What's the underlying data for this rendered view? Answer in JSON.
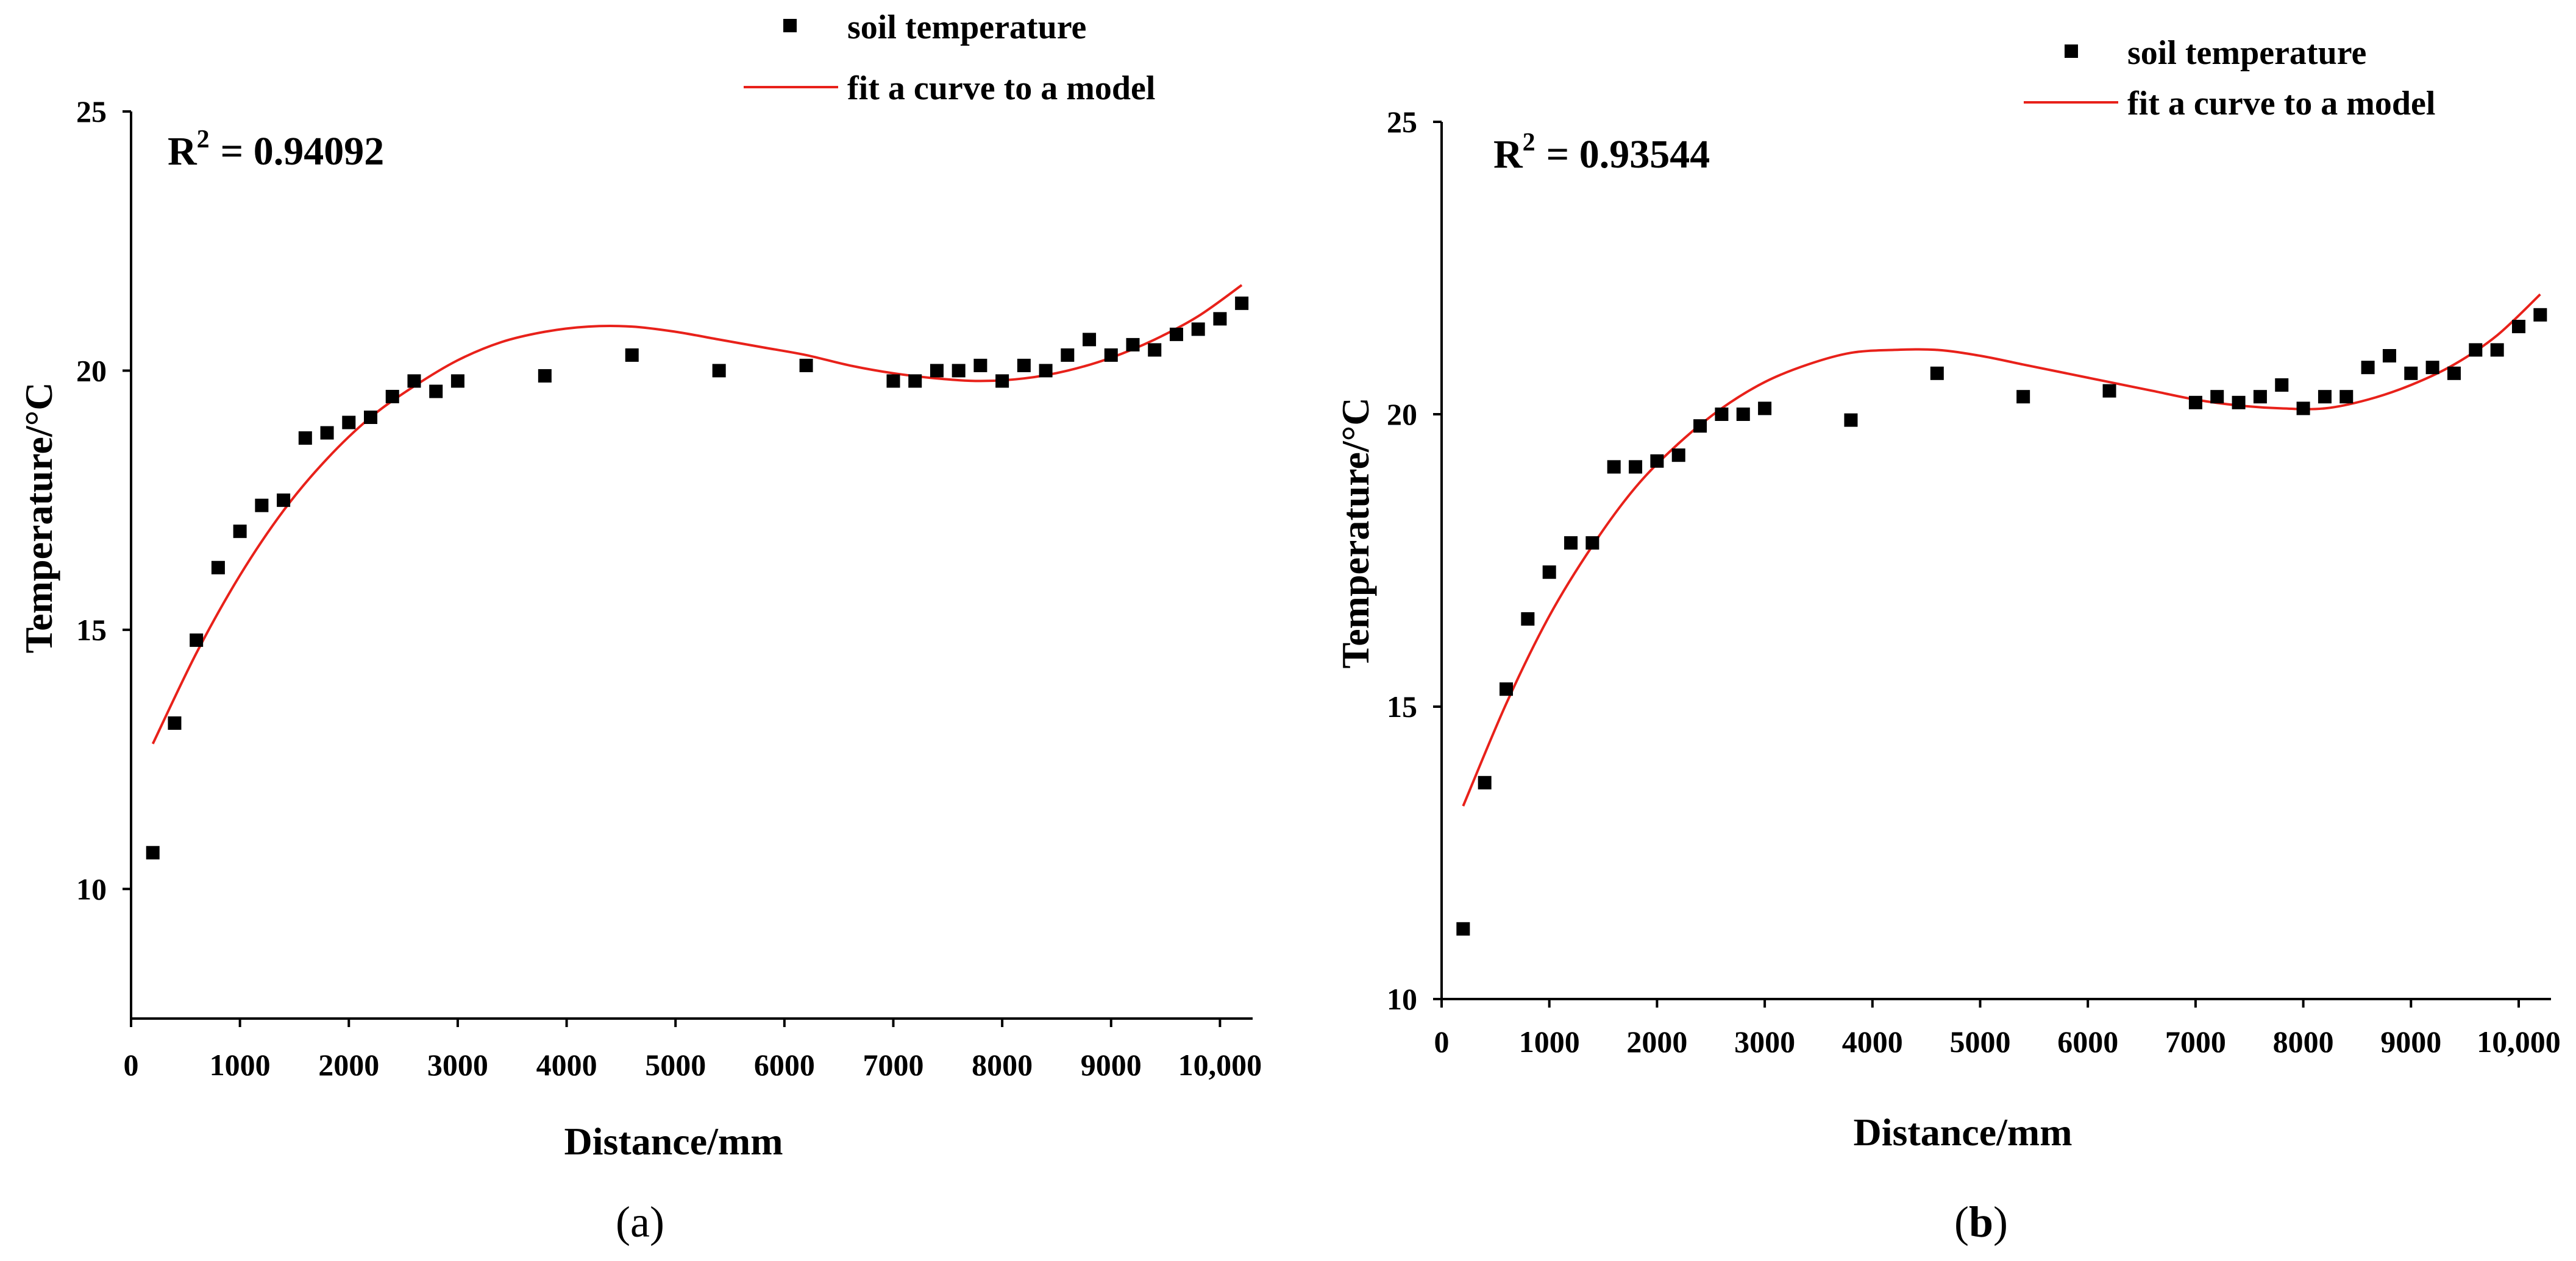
{
  "chart_data": [
    {
      "type": "scatter",
      "panel_label": "a",
      "annotation": {
        "prefix": "R",
        "superscript": "2",
        "value": "= 0.94092"
      },
      "xlabel": "Distance/mm",
      "ylabel": "Temperature/°C",
      "xlim": [
        0,
        10300
      ],
      "ylim": [
        7.5,
        25
      ],
      "xticks": [
        0,
        1000,
        2000,
        3000,
        4000,
        5000,
        6000,
        7000,
        8000,
        9000,
        10000
      ],
      "xtick_labels": [
        "0",
        "1000",
        "2000",
        "3000",
        "4000",
        "5000",
        "6000",
        "7000",
        "8000",
        "9000",
        "10,000"
      ],
      "yticks": [
        10,
        15,
        20,
        25
      ],
      "ytick_labels": [
        "10",
        "15",
        "20",
        "25"
      ],
      "legend": {
        "position": "top-right",
        "scatter_label": "soil temperature",
        "line_label": "fit a curve to a model"
      },
      "series": [
        {
          "name": "soil temperature",
          "kind": "scatter",
          "color": "#000000",
          "x": [
            200,
            400,
            600,
            800,
            1000,
            1200,
            1400,
            1600,
            1800,
            2000,
            2200,
            2400,
            2600,
            2800,
            3000,
            3800,
            4600,
            5400,
            6200,
            7000,
            7200,
            7400,
            7600,
            7800,
            8000,
            8200,
            8400,
            8600,
            8800,
            9000,
            9200,
            9400,
            9600,
            9800,
            10000,
            10200
          ],
          "y": [
            10.7,
            13.2,
            14.8,
            16.2,
            16.9,
            17.4,
            17.5,
            18.7,
            18.8,
            19.0,
            19.1,
            19.5,
            19.8,
            19.6,
            19.8,
            19.9,
            20.3,
            20.0,
            20.1,
            19.8,
            19.8,
            20.0,
            20.0,
            20.1,
            19.8,
            20.1,
            20.0,
            20.3,
            20.6,
            20.3,
            20.5,
            20.4,
            20.7,
            20.8,
            21.0,
            21.3
          ]
        },
        {
          "name": "fit a curve to a model",
          "kind": "line",
          "color": "#e8211a",
          "x": [
            200,
            600,
            1000,
            1400,
            1800,
            2200,
            2600,
            3000,
            3400,
            3800,
            4200,
            4600,
            5000,
            5400,
            5800,
            6200,
            6600,
            7000,
            7400,
            7800,
            8200,
            8600,
            9000,
            9400,
            9800,
            10200
          ],
          "y": [
            12.8,
            14.55,
            16.05,
            17.3,
            18.3,
            19.1,
            19.7,
            20.2,
            20.55,
            20.75,
            20.85,
            20.85,
            20.75,
            20.6,
            20.45,
            20.3,
            20.1,
            19.95,
            19.85,
            19.8,
            19.85,
            20.0,
            20.25,
            20.6,
            21.05,
            21.65
          ]
        }
      ]
    },
    {
      "type": "scatter",
      "panel_label": "b",
      "annotation": {
        "prefix": "R",
        "superscript": "2",
        "value": "= 0.93544"
      },
      "xlabel": "Distance/mm",
      "ylabel": "Temperature/°C",
      "xlim": [
        0,
        10300
      ],
      "ylim": [
        10,
        25
      ],
      "xticks": [
        0,
        1000,
        2000,
        3000,
        4000,
        5000,
        6000,
        7000,
        8000,
        9000,
        10000
      ],
      "xtick_labels": [
        "0",
        "1000",
        "2000",
        "3000",
        "4000",
        "5000",
        "6000",
        "7000",
        "8000",
        "9000",
        "10,000"
      ],
      "yticks": [
        10,
        15,
        20,
        25
      ],
      "ytick_labels": [
        "10",
        "15",
        "20",
        "25"
      ],
      "legend": {
        "position": "top-right",
        "scatter_label": "soil temperature",
        "line_label": "fit a curve to a model"
      },
      "series": [
        {
          "name": "soil temperature",
          "kind": "scatter",
          "color": "#000000",
          "x": [
            200,
            400,
            600,
            800,
            1000,
            1200,
            1400,
            1600,
            1800,
            2000,
            2200,
            2400,
            2600,
            2800,
            3000,
            3800,
            4600,
            5400,
            6200,
            7000,
            7200,
            7400,
            7600,
            7800,
            8000,
            8200,
            8400,
            8600,
            8800,
            9000,
            9200,
            9400,
            9600,
            9800,
            10000,
            10200
          ],
          "y": [
            11.2,
            13.7,
            15.3,
            16.5,
            17.3,
            17.8,
            17.8,
            19.1,
            19.1,
            19.2,
            19.3,
            19.8,
            20.0,
            20.0,
            20.1,
            19.9,
            20.7,
            20.3,
            20.4,
            20.2,
            20.3,
            20.2,
            20.3,
            20.5,
            20.1,
            20.3,
            20.3,
            20.8,
            21.0,
            20.7,
            20.8,
            20.7,
            21.1,
            21.1,
            21.5,
            21.7
          ]
        },
        {
          "name": "fit a curve to a model",
          "kind": "line",
          "color": "#e8211a",
          "x": [
            200,
            600,
            1000,
            1400,
            1800,
            2200,
            2600,
            3000,
            3400,
            3800,
            4200,
            4600,
            5000,
            5400,
            5800,
            6200,
            6600,
            7000,
            7400,
            7800,
            8200,
            8600,
            9000,
            9400,
            9800,
            10200
          ],
          "y": [
            13.3,
            15.05,
            16.55,
            17.75,
            18.75,
            19.5,
            20.1,
            20.55,
            20.85,
            21.05,
            21.1,
            21.1,
            21.0,
            20.85,
            20.7,
            20.55,
            20.4,
            20.25,
            20.15,
            20.1,
            20.1,
            20.25,
            20.5,
            20.85,
            21.35,
            22.05
          ]
        }
      ]
    }
  ]
}
